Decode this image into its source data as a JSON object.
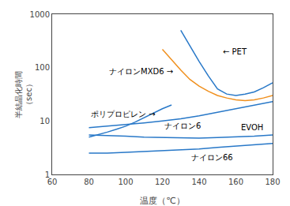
{
  "chart_data": {
    "type": "line",
    "xlabel": "温度（℃）",
    "ylabel": "半結晶化時間\n（sec）",
    "log": "y",
    "grid": false,
    "xlim": [
      60,
      180
    ],
    "ylim": [
      1,
      1000
    ],
    "xticks": [
      60,
      80,
      100,
      120,
      140,
      160,
      180
    ],
    "yticks": [
      1,
      10,
      100,
      1000
    ],
    "series": [
      {
        "color": "#2878C8",
        "x": [
          130,
          135,
          140,
          145,
          150,
          155,
          160,
          165,
          170,
          175,
          180
        ],
        "values": [
          500,
          250,
          130,
          70,
          40,
          32,
          30,
          32,
          35,
          42,
          52
        ]
      },
      {
        "color": "#F0901E",
        "x": [
          120,
          125,
          130,
          135,
          140,
          145,
          150,
          155,
          160,
          165,
          170,
          175,
          180
        ],
        "values": [
          220,
          140,
          90,
          60,
          45,
          36,
          30,
          27,
          25,
          24,
          25,
          27,
          30
        ]
      },
      {
        "color": "#2878C8",
        "x": [
          80,
          85,
          90,
          95,
          100,
          105,
          110,
          115,
          120,
          125
        ],
        "values": [
          5.0,
          5.5,
          6.2,
          7.0,
          8.0,
          9.5,
          11.5,
          14.0,
          17.0,
          20.0
        ]
      },
      {
        "color": "#2878C8",
        "x": [
          80,
          90,
          100,
          110,
          120,
          130,
          140,
          150,
          160,
          170,
          180
        ],
        "values": [
          7.5,
          8.0,
          8.5,
          9.2,
          10.0,
          11.0,
          12.5,
          14.5,
          17.0,
          20.0,
          23.0
        ]
      },
      {
        "color": "#2878C8",
        "x": [
          80,
          90,
          100,
          110,
          120,
          130,
          140,
          150,
          160,
          170,
          180
        ],
        "values": [
          5.5,
          5.4,
          5.2,
          5.0,
          4.9,
          4.8,
          4.8,
          4.9,
          5.0,
          5.2,
          5.5
        ]
      },
      {
        "color": "#2878C8",
        "x": [
          80,
          90,
          100,
          110,
          120,
          130,
          140,
          150,
          160,
          170,
          180
        ],
        "values": [
          2.5,
          2.5,
          2.6,
          2.7,
          2.8,
          2.9,
          3.0,
          3.2,
          3.4,
          3.6,
          3.8
        ]
      }
    ],
    "annotations": [
      {
        "text": "← PET",
        "x": 152,
        "y": 200
      },
      {
        "text": "ナイロンMXD6 →",
        "x": 90,
        "y": 85
      },
      {
        "text": "ポリプロピレン →",
        "x": 80,
        "y": 13.5
      },
      {
        "text": "ナイロン6",
        "x": 120,
        "y": 8.0
      },
      {
        "text": "EVOH",
        "x": 162,
        "y": 7.5
      },
      {
        "text": "ナイロン66",
        "x": 135,
        "y": 2.1
      }
    ]
  }
}
